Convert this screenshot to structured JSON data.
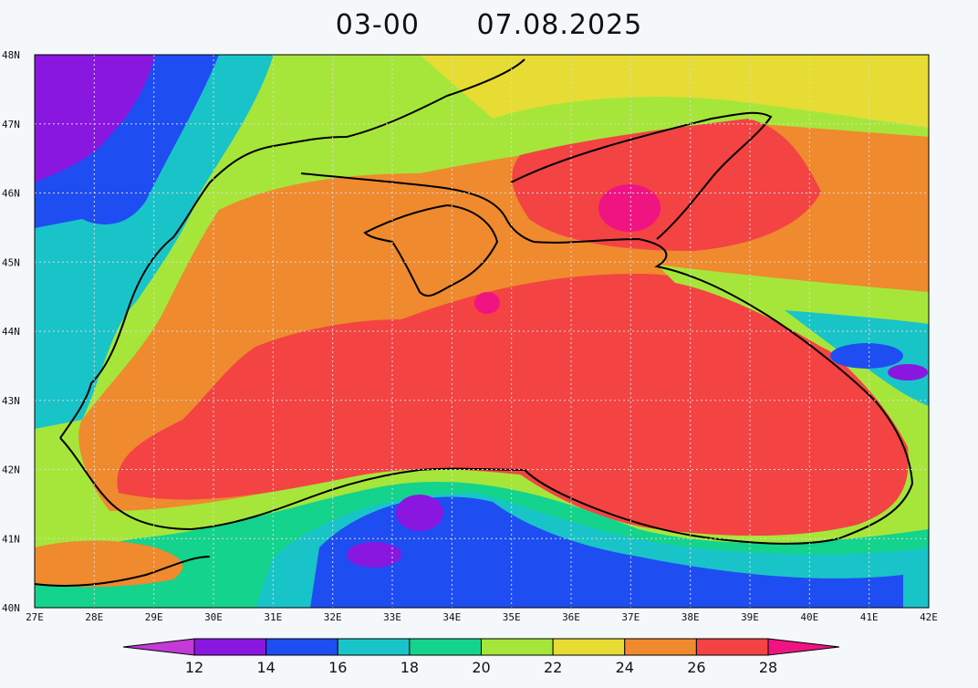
{
  "title": {
    "time": "03-00",
    "date": "07.08.2025"
  },
  "map": {
    "lon_labels": [
      "27E",
      "28E",
      "29E",
      "30E",
      "31E",
      "32E",
      "33E",
      "34E",
      "35E",
      "36E",
      "37E",
      "38E",
      "39E",
      "40E",
      "41E",
      "42E"
    ],
    "lat_labels": [
      "40N",
      "41N",
      "42N",
      "43N",
      "44N",
      "45N",
      "46N",
      "47N",
      "48N"
    ],
    "lon_range": [
      27,
      42
    ],
    "lat_range": [
      40,
      48
    ],
    "grid": "dotted"
  },
  "colorbar": {
    "ticks": [
      "12",
      "14",
      "16",
      "18",
      "20",
      "22",
      "24",
      "26",
      "28"
    ],
    "bins": [
      {
        "range": "<12",
        "color": "#c43ad8"
      },
      {
        "range": "12-14",
        "color": "#8a17e0"
      },
      {
        "range": "14-16",
        "color": "#1e4ef2"
      },
      {
        "range": "16-18",
        "color": "#19c4c8"
      },
      {
        "range": "18-20",
        "color": "#14d38c"
      },
      {
        "range": "20-22",
        "color": "#a6e63a"
      },
      {
        "range": "22-24",
        "color": "#e6dc34"
      },
      {
        "range": "24-26",
        "color": "#ef8a2e"
      },
      {
        "range": "26-28",
        "color": "#f34343"
      },
      {
        "range": ">28",
        "color": "#f01482"
      }
    ]
  }
}
